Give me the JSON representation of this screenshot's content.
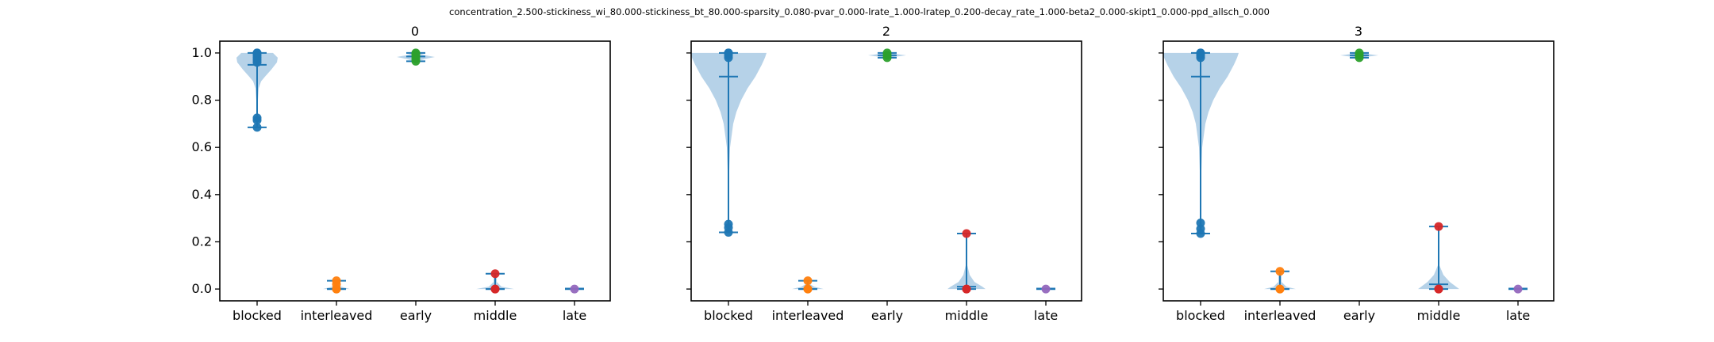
{
  "suptitle": "concentration_2.500-stickiness_wi_80.000-stickiness_bt_80.000-sparsity_0.080-pvar_0.000-lrate_1.000-lratep_0.200-decay_rate_1.000-beta2_0.000-skipt1_0.000-ppd_allsch_0.000",
  "colors": {
    "violin_fill": "#aecde6",
    "line": "#1f77b4",
    "points": [
      "#1f77b4",
      "#ff7f0e",
      "#2ca02c",
      "#d62728",
      "#9467bd"
    ]
  },
  "chart_data": [
    {
      "type": "violin",
      "title": "0",
      "categories": [
        "blocked",
        "interleaved",
        "early",
        "middle",
        "late"
      ],
      "ylim": [
        -0.05,
        1.05
      ],
      "yticks": [
        0.0,
        0.2,
        0.4,
        0.6,
        0.8,
        1.0
      ],
      "ytick_labels": [
        "0.0",
        "0.2",
        "0.4",
        "0.6",
        "0.8",
        "1.0"
      ],
      "violins": [
        {
          "min": 0.685,
          "max": 1.0,
          "median": 0.95,
          "width": 0.24,
          "profile": [
            [
              0.685,
              0.01
            ],
            [
              0.7,
              0.01
            ],
            [
              0.72,
              0.015
            ],
            [
              0.75,
              0.01
            ],
            [
              0.8,
              0.01
            ],
            [
              0.85,
              0.02
            ],
            [
              0.88,
              0.05
            ],
            [
              0.9,
              0.1
            ],
            [
              0.93,
              0.18
            ],
            [
              0.96,
              0.25
            ],
            [
              0.98,
              0.26
            ],
            [
              1.0,
              0.2
            ]
          ],
          "points": [
            0.685,
            0.715,
            0.725,
            0.96,
            0.97,
            0.98,
            0.99,
            1.0,
            1.0
          ]
        },
        {
          "min": 0.0,
          "max": 0.035,
          "median": 0.0,
          "width": 0.17,
          "profile": [
            [
              0.0,
              0.17
            ],
            [
              0.01,
              0.06
            ],
            [
              0.02,
              0.02
            ],
            [
              0.035,
              0.02
            ]
          ],
          "points": [
            0.0,
            0.0,
            0.02,
            0.035
          ]
        },
        {
          "min": 0.965,
          "max": 1.0,
          "median": 0.985,
          "width": 0.24,
          "profile": [
            [
              0.965,
              0.02
            ],
            [
              0.975,
              0.12
            ],
            [
              0.983,
              0.24
            ],
            [
              0.99,
              0.12
            ],
            [
              1.0,
              0.03
            ]
          ],
          "points": [
            0.965,
            0.975,
            0.985,
            0.995,
            1.0
          ]
        },
        {
          "min": 0.0,
          "max": 0.065,
          "median": 0.0,
          "width": 0.24,
          "profile": [
            [
              0.0,
              0.24
            ],
            [
              0.01,
              0.08
            ],
            [
              0.03,
              0.02
            ],
            [
              0.065,
              0.02
            ]
          ],
          "points": [
            0.0,
            0.0,
            0.065
          ]
        },
        {
          "min": 0.0,
          "max": 0.002,
          "median": 0.0,
          "width": 0.12,
          "profile": [
            [
              0.0,
              0.12
            ],
            [
              0.002,
              0.05
            ]
          ],
          "points": [
            0.0
          ]
        }
      ]
    },
    {
      "type": "violin",
      "title": "2",
      "categories": [
        "blocked",
        "interleaved",
        "early",
        "middle",
        "late"
      ],
      "ylim": [
        -0.05,
        1.05
      ],
      "yticks": [
        0.0,
        0.2,
        0.4,
        0.6,
        0.8,
        1.0
      ],
      "ytick_labels": [
        "",
        "",
        "",
        "",
        "",
        ""
      ],
      "violins": [
        {
          "min": 0.24,
          "max": 1.0,
          "median": 0.9,
          "width": 0.48,
          "profile": [
            [
              0.24,
              0.03
            ],
            [
              0.26,
              0.02
            ],
            [
              0.3,
              0.01
            ],
            [
              0.4,
              0.01
            ],
            [
              0.5,
              0.01
            ],
            [
              0.6,
              0.02
            ],
            [
              0.7,
              0.06
            ],
            [
              0.75,
              0.1
            ],
            [
              0.8,
              0.16
            ],
            [
              0.85,
              0.24
            ],
            [
              0.9,
              0.34
            ],
            [
              0.95,
              0.42
            ],
            [
              0.98,
              0.46
            ],
            [
              1.0,
              0.48
            ]
          ],
          "points": [
            0.24,
            0.26,
            0.275,
            0.98,
            0.99,
            1.0,
            1.0
          ]
        },
        {
          "min": 0.0,
          "max": 0.035,
          "median": 0.0,
          "width": 0.2,
          "profile": [
            [
              0.0,
              0.2
            ],
            [
              0.01,
              0.08
            ],
            [
              0.02,
              0.03
            ],
            [
              0.035,
              0.02
            ]
          ],
          "points": [
            0.0,
            0.0,
            0.035
          ]
        },
        {
          "min": 0.98,
          "max": 1.0,
          "median": 0.99,
          "width": 0.24,
          "profile": [
            [
              0.98,
              0.02
            ],
            [
              0.985,
              0.12
            ],
            [
              0.99,
              0.24
            ],
            [
              0.995,
              0.12
            ],
            [
              1.0,
              0.04
            ]
          ],
          "points": [
            0.98,
            0.99,
            1.0
          ]
        },
        {
          "min": 0.0,
          "max": 0.235,
          "median": 0.01,
          "width": 0.24,
          "profile": [
            [
              0.0,
              0.24
            ],
            [
              0.01,
              0.2
            ],
            [
              0.03,
              0.1
            ],
            [
              0.06,
              0.04
            ],
            [
              0.1,
              0.01
            ],
            [
              0.2,
              0.01
            ],
            [
              0.235,
              0.01
            ]
          ],
          "points": [
            0.0,
            0.0,
            0.235
          ]
        },
        {
          "min": 0.0,
          "max": 0.002,
          "median": 0.0,
          "width": 0.12,
          "profile": [
            [
              0.0,
              0.12
            ],
            [
              0.002,
              0.05
            ]
          ],
          "points": [
            0.0
          ]
        }
      ]
    },
    {
      "type": "violin",
      "title": "3",
      "categories": [
        "blocked",
        "interleaved",
        "early",
        "middle",
        "late"
      ],
      "ylim": [
        -0.05,
        1.05
      ],
      "yticks": [
        0.0,
        0.2,
        0.4,
        0.6,
        0.8,
        1.0
      ],
      "ytick_labels": [
        "",
        "",
        "",
        "",
        "",
        ""
      ],
      "violins": [
        {
          "min": 0.235,
          "max": 1.0,
          "median": 0.9,
          "width": 0.48,
          "profile": [
            [
              0.235,
              0.03
            ],
            [
              0.26,
              0.02
            ],
            [
              0.3,
              0.01
            ],
            [
              0.4,
              0.01
            ],
            [
              0.5,
              0.01
            ],
            [
              0.6,
              0.02
            ],
            [
              0.7,
              0.06
            ],
            [
              0.75,
              0.1
            ],
            [
              0.8,
              0.16
            ],
            [
              0.85,
              0.24
            ],
            [
              0.9,
              0.34
            ],
            [
              0.95,
              0.42
            ],
            [
              0.98,
              0.46
            ],
            [
              1.0,
              0.48
            ]
          ],
          "points": [
            0.235,
            0.255,
            0.28,
            0.98,
            0.99,
            1.0,
            1.0
          ]
        },
        {
          "min": 0.0,
          "max": 0.075,
          "median": 0.0,
          "width": 0.2,
          "profile": [
            [
              0.0,
              0.2
            ],
            [
              0.01,
              0.08
            ],
            [
              0.03,
              0.02
            ],
            [
              0.075,
              0.02
            ]
          ],
          "points": [
            0.0,
            0.0,
            0.075
          ]
        },
        {
          "min": 0.98,
          "max": 1.0,
          "median": 0.99,
          "width": 0.24,
          "profile": [
            [
              0.98,
              0.02
            ],
            [
              0.985,
              0.12
            ],
            [
              0.99,
              0.24
            ],
            [
              0.995,
              0.12
            ],
            [
              1.0,
              0.04
            ]
          ],
          "points": [
            0.98,
            0.99,
            1.0
          ]
        },
        {
          "min": 0.0,
          "max": 0.265,
          "median": 0.02,
          "width": 0.26,
          "profile": [
            [
              0.0,
              0.26
            ],
            [
              0.01,
              0.22
            ],
            [
              0.03,
              0.14
            ],
            [
              0.06,
              0.06
            ],
            [
              0.1,
              0.01
            ],
            [
              0.2,
              0.01
            ],
            [
              0.265,
              0.01
            ]
          ],
          "points": [
            0.0,
            0.0,
            0.265
          ]
        },
        {
          "min": 0.0,
          "max": 0.002,
          "median": 0.0,
          "width": 0.12,
          "profile": [
            [
              0.0,
              0.12
            ],
            [
              0.002,
              0.05
            ]
          ],
          "points": [
            0.0
          ]
        }
      ]
    }
  ]
}
